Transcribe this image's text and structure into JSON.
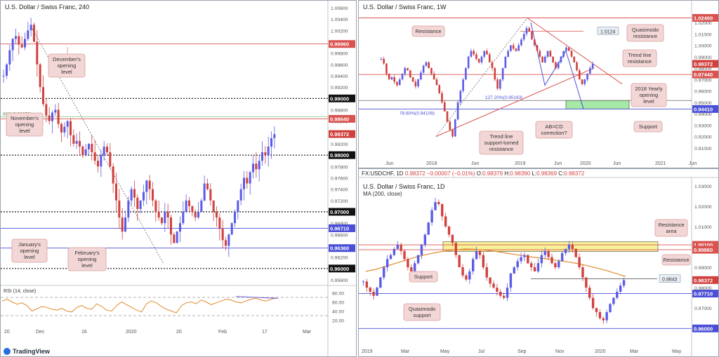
{
  "colors": {
    "bull": "#5b5ce6",
    "bear": "#d0413e",
    "red_level": "#d9534f",
    "blue_level": "#4a4fd6",
    "black_level": "#111111",
    "callout_bg": "#f3d6d6",
    "callout_border": "#d9a0a0",
    "ma": "#e08a2c",
    "rsi": "#e08a2c",
    "yellow_zone": "#f7f29a",
    "green_zone": "#a6e8a6",
    "price_tag": "#d0413e",
    "blue_tag": "#4a4fd6",
    "black_tag": "#111111"
  },
  "footer": {
    "brand": "TradingView",
    "brand_icon": "tradingview-logo-icon"
  },
  "panel_4h": {
    "title": "U.S. Dollar / Swiss Franc, 240",
    "y_ticks": [
      "1.00600",
      "1.00400",
      "1.00200",
      "1.00000",
      "0.99800",
      "0.99600",
      "0.99400",
      "0.99200",
      "0.99000",
      "0.98800",
      "0.98600",
      "0.98400",
      "0.98200",
      "0.98000",
      "0.97800",
      "0.97600",
      "0.97400",
      "0.97200",
      "0.97000",
      "0.96800",
      "0.96600",
      "0.96400",
      "0.96200",
      "0.96000",
      "0.95800"
    ],
    "x_ticks": [
      "20",
      "Dec",
      "16",
      "2020",
      "20",
      "Feb",
      "17",
      "Mar"
    ],
    "fib_label": "80%(0.98679)",
    "levels": [
      {
        "value": "0.99960",
        "kind": "red"
      },
      {
        "value": "0.99000",
        "kind": "black"
      },
      {
        "value": "0.98640",
        "kind": "red"
      },
      {
        "value": "0.98372",
        "kind": "price"
      },
      {
        "value": "0.98000",
        "kind": "black"
      },
      {
        "value": "0.97000",
        "kind": "black"
      },
      {
        "value": "0.96710",
        "kind": "blue"
      },
      {
        "value": "0.96360",
        "kind": "blue"
      },
      {
        "value": "0.96000",
        "kind": "black"
      }
    ],
    "callouts": [
      {
        "text": "December's\nopening\nlevel"
      },
      {
        "text": "November's\nopening\nlevel"
      },
      {
        "text": "January's\nopening\nlevel"
      },
      {
        "text": "February's\nopening\nlevel"
      }
    ],
    "rsi_label": "RSI (14, close)",
    "rsi_ticks": [
      "80.00",
      "60.00",
      "40.00",
      "20.00"
    ]
  },
  "panel_1w": {
    "title": "U.S. Dollar / Swiss Franc, 1W",
    "y_ticks": [
      "1.02000",
      "1.01000",
      "1.00000",
      "0.99000",
      "0.98000",
      "0.97000",
      "0.96000",
      "0.95000",
      "0.94000",
      "0.93000",
      "0.92000",
      "0.91000"
    ],
    "x_ticks": [
      "Jun",
      "2018",
      "Jun",
      "2019",
      "Jun",
      "2020",
      "Jun",
      "2021",
      "Jun"
    ],
    "levels": [
      {
        "value": "1.02400",
        "kind": "red"
      },
      {
        "value": "0.98372",
        "kind": "price"
      },
      {
        "value": "0.97440",
        "kind": "red"
      },
      {
        "value": "0.94410",
        "kind": "blue"
      }
    ],
    "boxed_label": "1.0124",
    "fib_labels": [
      "127.20%(0.95163)",
      "78.60%(0.94109)"
    ],
    "callouts": [
      {
        "text": "Resistance"
      },
      {
        "text": "Quasimodo\nresistance"
      },
      {
        "text": "Trend line\nresistance"
      },
      {
        "text": "2018 Yearly\nopening\nlevel"
      },
      {
        "text": "Support"
      },
      {
        "text": "AB=CD\ncorrection?"
      },
      {
        "text": "Trend line\nsupport-turned\nresistance"
      }
    ]
  },
  "panel_1d": {
    "header": {
      "symbol": "FX:USDCHF, 1D",
      "price": "0.98372",
      "change": "−0.00007 (−0.01%)",
      "o": "0.98379",
      "h": "0.98390",
      "l": "0.98369",
      "c": "0.98372"
    },
    "title": "U.S. Dollar / Swiss Franc, 1D",
    "ma_label": "MA (200, close)",
    "y_ticks": [
      "1.03000",
      "1.02000",
      "1.01000",
      "1.00000",
      "0.99000",
      "0.98000",
      "0.97000",
      "0.96000"
    ],
    "x_ticks": [
      "2019",
      "Mar",
      "May",
      "Jul",
      "Sep",
      "Nov",
      "2020",
      "Mar",
      "May"
    ],
    "levels": [
      {
        "value": "1.00100",
        "kind": "red"
      },
      {
        "value": "0.99860",
        "kind": "red"
      },
      {
        "value": "0.98372",
        "kind": "price"
      },
      {
        "value": "0.97710",
        "kind": "blue"
      },
      {
        "value": "0.96000",
        "kind": "blue"
      }
    ],
    "boxed_label": "0.9843",
    "callouts": [
      {
        "text": "Resistance\narea"
      },
      {
        "text": "Resistance"
      },
      {
        "text": "Support"
      },
      {
        "text": "Quasimodo\nsupport"
      }
    ]
  },
  "chart_data": [
    {
      "type": "candlestick",
      "title": "U.S. Dollar / Swiss Franc, 240",
      "ylim": [
        0.958,
        1.006
      ],
      "horizontal_levels": [
        0.9996,
        0.99,
        0.9864,
        0.98,
        0.97,
        0.9671,
        0.9636,
        0.96
      ],
      "last_price": 0.98372,
      "close_path": [
        0.994,
        0.996,
        0.9985,
        1.0005,
        1.001,
        0.9995,
        0.999,
        1.0005,
        1.002,
        1.003,
        1.0,
        0.996,
        0.992,
        0.989,
        0.987,
        0.986,
        0.9875,
        0.988,
        0.9855,
        0.984,
        0.985,
        0.986,
        0.9835,
        0.982,
        0.9825,
        0.9815,
        0.98,
        0.981,
        0.982,
        0.9805,
        0.979,
        0.978,
        0.98,
        0.9815,
        0.9805,
        0.978,
        0.975,
        0.972,
        0.969,
        0.9665,
        0.969,
        0.972,
        0.974,
        0.9725,
        0.9705,
        0.972,
        0.9735,
        0.9755,
        0.974,
        0.972,
        0.97,
        0.969,
        0.968,
        0.97,
        0.969,
        0.966,
        0.9645,
        0.9665,
        0.968,
        0.97,
        0.972,
        0.971,
        0.97,
        0.969,
        0.97,
        0.972,
        0.975,
        0.974,
        0.972,
        0.97,
        0.969,
        0.967,
        0.965,
        0.964,
        0.966,
        0.968,
        0.97,
        0.972,
        0.974,
        0.976,
        0.975,
        0.977,
        0.9785,
        0.9775,
        0.979,
        0.9805,
        0.98,
        0.9815,
        0.983,
        0.9837
      ],
      "rsi": {
        "ylim": [
          10,
          90
        ],
        "values": [
          62,
          66,
          60,
          55,
          58,
          52,
          40,
          45,
          50,
          48,
          44,
          42,
          46,
          40,
          38,
          48,
          52,
          46,
          44,
          56,
          50,
          42,
          40,
          52,
          60,
          54,
          48,
          42,
          38,
          56,
          62,
          58,
          50,
          44,
          40,
          36,
          52,
          58,
          60,
          56,
          64,
          60,
          54,
          58,
          62,
          66,
          64,
          60,
          58,
          62,
          66,
          68,
          64,
          62,
          66,
          68
        ]
      }
    },
    {
      "type": "candlestick",
      "title": "U.S. Dollar / Swiss Franc, 1W",
      "ylim": [
        0.905,
        1.028
      ],
      "horizontal_levels": [
        1.024,
        0.9744,
        0.9441
      ],
      "last_price": 0.98372,
      "close_path": [
        0.988,
        0.984,
        0.975,
        0.97,
        0.972,
        0.968,
        0.965,
        0.97,
        0.975,
        0.98,
        0.978,
        0.972,
        0.968,
        0.964,
        0.97,
        0.976,
        0.982,
        0.985,
        0.98,
        0.975,
        0.97,
        0.965,
        0.958,
        0.95,
        0.942,
        0.933,
        0.926,
        0.92,
        0.935,
        0.95,
        0.96,
        0.97,
        0.98,
        0.99,
        0.995,
        0.992,
        0.988,
        0.985,
        0.99,
        0.995,
        0.992,
        0.985,
        0.98,
        0.97,
        0.962,
        0.97,
        0.98,
        0.99,
        0.995,
        1.0,
        0.997,
        0.995,
        1.0,
        1.005,
        1.01,
        1.015,
        1.012,
        1.005,
        1.0,
        0.995,
        0.99,
        0.985,
        0.99,
        0.995,
        0.99,
        0.985,
        0.98,
        0.985,
        0.99,
        0.995,
        0.998,
        0.995,
        0.99,
        0.985,
        0.978,
        0.97,
        0.966,
        0.97,
        0.975,
        0.98,
        0.9837
      ]
    },
    {
      "type": "candlestick",
      "title": "U.S. Dollar / Swiss Franc, 1D",
      "ylim": [
        0.957,
        1.032
      ],
      "horizontal_levels": [
        1.001,
        0.9986,
        0.9843,
        0.9771,
        0.96
      ],
      "last_price": 0.98372,
      "series": [
        {
          "name": "MA (200, close)",
          "values": [
            0.988,
            0.989,
            0.9905,
            0.992,
            0.9935,
            0.995,
            0.9962,
            0.9972,
            0.998,
            0.9986,
            0.999,
            0.9988,
            0.9984,
            0.9978,
            0.997,
            0.9962,
            0.9955,
            0.9948,
            0.9942,
            0.9935,
            0.9928,
            0.992,
            0.991,
            0.9898,
            0.9885,
            0.987,
            0.9855
          ]
        }
      ],
      "close_path": [
        0.983,
        0.98,
        0.978,
        0.976,
        0.98,
        0.985,
        0.99,
        0.994,
        0.996,
        0.999,
        1.001,
        0.998,
        0.994,
        0.99,
        0.988,
        0.992,
        0.996,
        1.001,
        1.006,
        1.012,
        1.018,
        1.022,
        1.021,
        1.015,
        1.01,
        1.006,
        1.002,
        0.996,
        0.99,
        0.986,
        0.984,
        0.988,
        0.994,
        0.998,
        0.996,
        0.99,
        0.985,
        0.982,
        0.98,
        0.978,
        0.976,
        0.975,
        0.98,
        0.987,
        0.99,
        0.993,
        0.995,
        0.996,
        0.992,
        0.99,
        0.988,
        0.992,
        0.996,
        0.998,
        0.995,
        0.992,
        0.99,
        0.993,
        0.997,
        0.999,
        1.001,
        0.999,
        0.995,
        0.99,
        0.985,
        0.98,
        0.975,
        0.97,
        0.968,
        0.965,
        0.964,
        0.968,
        0.972,
        0.975,
        0.978,
        0.981,
        0.9837
      ]
    }
  ]
}
